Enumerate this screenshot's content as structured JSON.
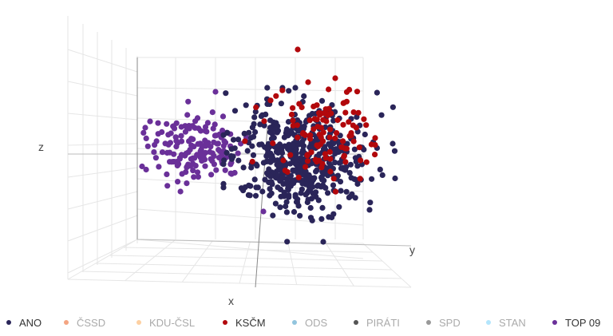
{
  "chart_data": {
    "type": "scatter",
    "dimension": "3d",
    "axes": {
      "x": "x",
      "y": "y",
      "z": "z"
    },
    "grid": true,
    "legend_placement": "bottom",
    "series": [
      {
        "name": "ANO",
        "color": "#2a2559",
        "visible": true
      },
      {
        "name": "ČSSD",
        "color": "#f4a582",
        "visible": false
      },
      {
        "name": "KDU-ČSL",
        "color": "#fdd0a2",
        "visible": false
      },
      {
        "name": "KSČM",
        "color": "#b2080c",
        "visible": true
      },
      {
        "name": "ODS",
        "color": "#92c5de",
        "visible": false
      },
      {
        "name": "PIRÁTI",
        "color": "#555555",
        "visible": false
      },
      {
        "name": "SPD",
        "color": "#999999",
        "visible": false
      },
      {
        "name": "STAN",
        "color": "#b3e5fc",
        "visible": false
      },
      {
        "name": "TOP 09",
        "color": "#6a3099",
        "visible": true
      }
    ]
  },
  "legend": {
    "items": [
      {
        "label": "ANO"
      },
      {
        "label": "ČSSD"
      },
      {
        "label": "KDU-ČSL"
      },
      {
        "label": "KSČM"
      },
      {
        "label": "ODS"
      },
      {
        "label": "PIRÁTI"
      },
      {
        "label": "SPD"
      },
      {
        "label": "STAN"
      },
      {
        "label": "TOP 09"
      }
    ]
  }
}
